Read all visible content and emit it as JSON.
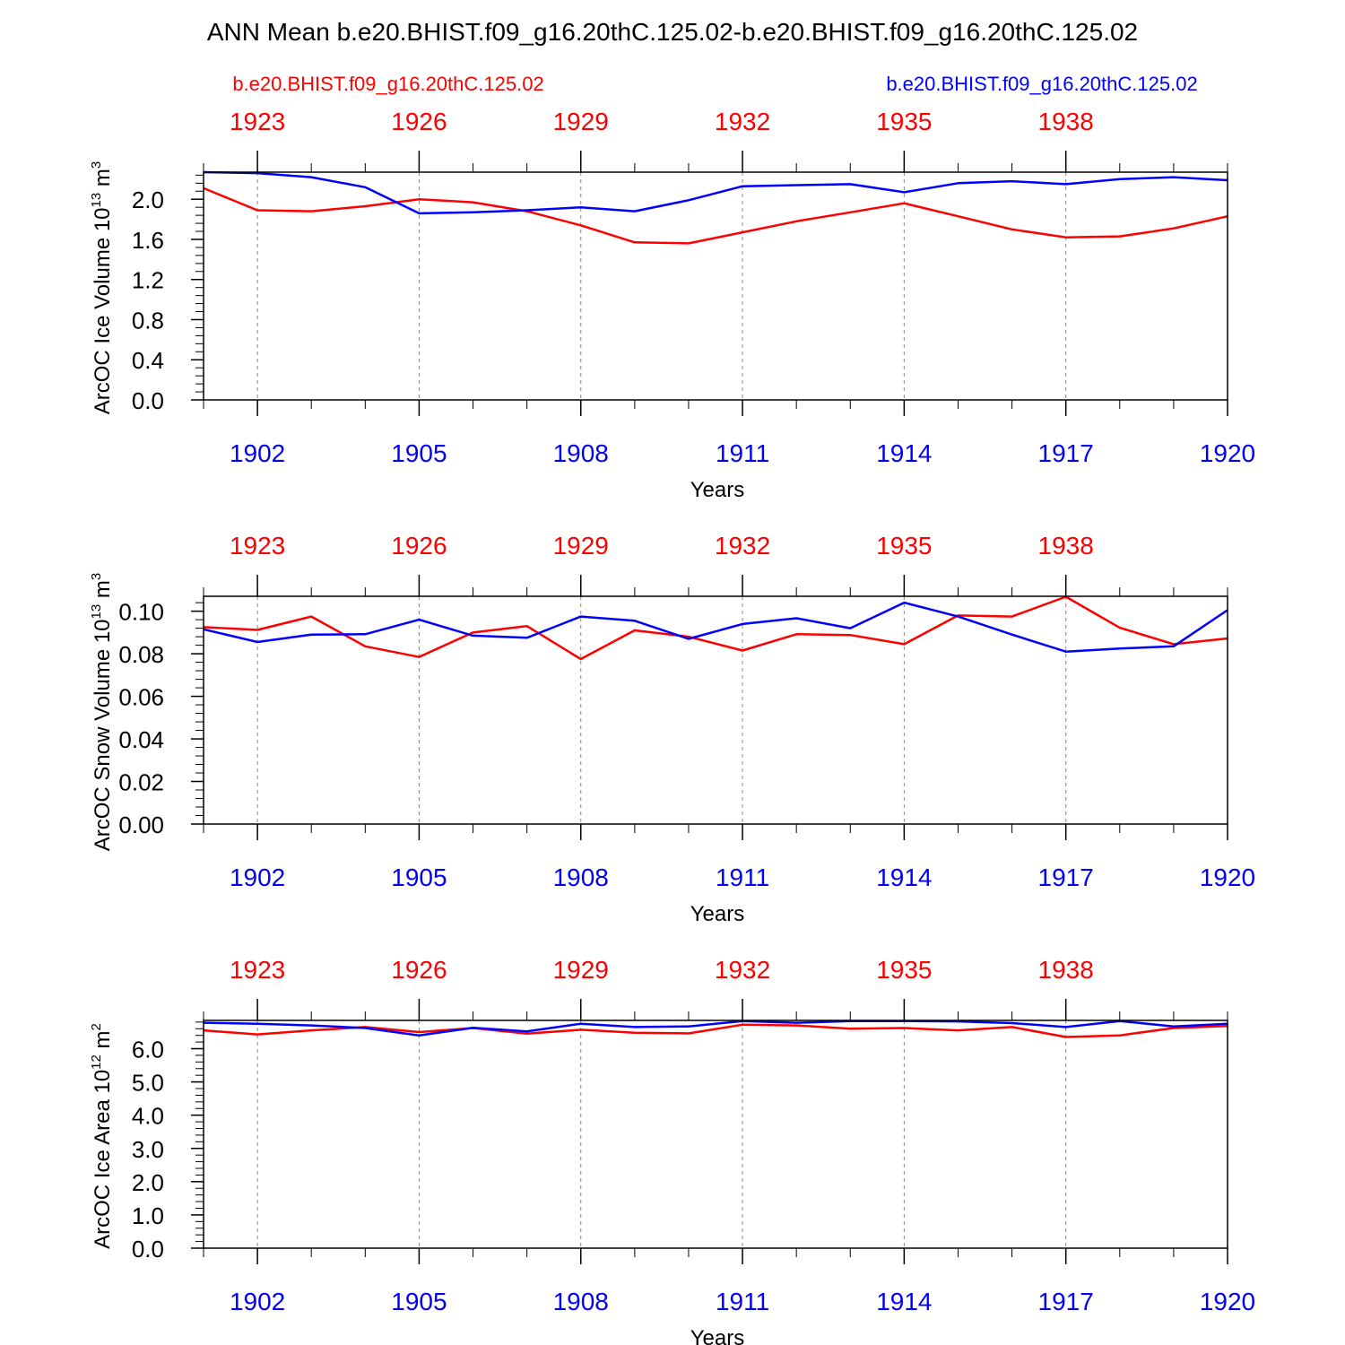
{
  "title": "ANN Mean b.e20.BHIST.f09_g16.20thC.125.02-b.e20.BHIST.f09_g16.20thC.125.02",
  "legend": {
    "left_label": "b.e20.BHIST.f09_g16.20thC.125.02",
    "right_label": "b.e20.BHIST.f09_g16.20thC.125.02",
    "left_color": "#ff0000",
    "right_color": "#0000ff"
  },
  "colors": {
    "red": "#ff0000",
    "blue": "#0000ff",
    "axis": "#000000",
    "grid": "#888888"
  },
  "chart_data": [
    {
      "type": "line",
      "ylabel": "ArcOC Ice Volume 10",
      "ylabel_exp": "13",
      "ylabel_unit": " m",
      "ylabel_unit_exp": "3",
      "xlabel": "Years",
      "ylim": [
        0,
        2.27
      ],
      "yticks": [
        0.0,
        0.4,
        0.8,
        1.2,
        1.6,
        2.0
      ],
      "ytick_labels": [
        "0.0",
        "0.4",
        "0.8",
        "1.2",
        "1.6",
        "2.0"
      ],
      "yminor_step": 0.08,
      "x_bottom_ticks": [
        1902,
        1905,
        1908,
        1911,
        1914,
        1917,
        1920
      ],
      "x_bottom_labels": [
        "1902",
        "1905",
        "1908",
        "1911",
        "1914",
        "1917",
        "1920"
      ],
      "x_top_ticks": [
        1923,
        1926,
        1929,
        1932,
        1935,
        1938
      ],
      "x_top_labels": [
        "1923",
        "1926",
        "1929",
        "1932",
        "1935",
        "1938"
      ],
      "x_bottom": [
        1901,
        1902,
        1903,
        1904,
        1905,
        1906,
        1907,
        1908,
        1909,
        1910,
        1911,
        1912,
        1913,
        1914,
        1915,
        1916,
        1917,
        1918,
        1919,
        1920
      ],
      "series": [
        {
          "name": "b.e20.BHIST.f09_g16.20thC.125.02 (red)",
          "color": "red",
          "values": [
            2.11,
            1.89,
            1.88,
            1.93,
            2.0,
            1.97,
            1.88,
            1.74,
            1.57,
            1.56,
            1.67,
            1.78,
            1.87,
            1.96,
            1.83,
            1.7,
            1.62,
            1.63,
            1.71,
            1.83
          ]
        },
        {
          "name": "b.e20.BHIST.f09_g16.20thC.125.02 (blue)",
          "color": "blue",
          "values": [
            2.27,
            2.26,
            2.22,
            2.12,
            1.86,
            1.87,
            1.89,
            1.92,
            1.88,
            1.99,
            2.13,
            2.14,
            2.15,
            2.07,
            2.16,
            2.18,
            2.15,
            2.2,
            2.22,
            2.19
          ]
        }
      ]
    },
    {
      "type": "line",
      "ylabel": "ArcOC Snow Volume 10",
      "ylabel_exp": "13",
      "ylabel_unit": " m",
      "ylabel_unit_exp": "3",
      "xlabel": "Years",
      "ylim": [
        0,
        0.107
      ],
      "yticks": [
        0.0,
        0.02,
        0.04,
        0.06,
        0.08,
        0.1
      ],
      "ytick_labels": [
        "0.00",
        "0.02",
        "0.04",
        "0.06",
        "0.08",
        "0.10"
      ],
      "yminor_step": 0.004,
      "x_bottom_ticks": [
        1902,
        1905,
        1908,
        1911,
        1914,
        1917,
        1920
      ],
      "x_bottom_labels": [
        "1902",
        "1905",
        "1908",
        "1911",
        "1914",
        "1917",
        "1920"
      ],
      "x_top_ticks": [
        1923,
        1926,
        1929,
        1932,
        1935,
        1938
      ],
      "x_top_labels": [
        "1923",
        "1926",
        "1929",
        "1932",
        "1935",
        "1938"
      ],
      "x_bottom": [
        1901,
        1902,
        1903,
        1904,
        1905,
        1906,
        1907,
        1908,
        1909,
        1910,
        1911,
        1912,
        1913,
        1914,
        1915,
        1916,
        1917,
        1918,
        1919,
        1920
      ],
      "series": [
        {
          "name": "b.e20.BHIST.f09_g16.20thC.125.02 (red)",
          "color": "red",
          "values": [
            0.0925,
            0.0912,
            0.0975,
            0.0835,
            0.0785,
            0.09,
            0.093,
            0.0775,
            0.091,
            0.088,
            0.0815,
            0.0892,
            0.0888,
            0.0845,
            0.098,
            0.0975,
            0.1068,
            0.0922,
            0.0845,
            0.0872
          ]
        },
        {
          "name": "b.e20.BHIST.f09_g16.20thC.125.02 (blue)",
          "color": "blue",
          "values": [
            0.0915,
            0.0855,
            0.089,
            0.0892,
            0.096,
            0.0885,
            0.0875,
            0.0975,
            0.0955,
            0.087,
            0.094,
            0.0967,
            0.092,
            0.104,
            0.0975,
            0.089,
            0.081,
            0.0825,
            0.0835,
            0.1005
          ]
        }
      ]
    },
    {
      "type": "line",
      "ylabel": "ArcOC Ice Area 10",
      "ylabel_exp": "12",
      "ylabel_unit": " m",
      "ylabel_unit_exp": "2",
      "xlabel": "Years",
      "ylim": [
        0,
        6.85
      ],
      "yticks": [
        0.0,
        1.0,
        2.0,
        3.0,
        4.0,
        5.0,
        6.0
      ],
      "ytick_labels": [
        "0.0",
        "1.0",
        "2.0",
        "3.0",
        "4.0",
        "5.0",
        "6.0"
      ],
      "yminor_step": 0.2,
      "x_bottom_ticks": [
        1902,
        1905,
        1908,
        1911,
        1914,
        1917,
        1920
      ],
      "x_bottom_labels": [
        "1902",
        "1905",
        "1908",
        "1911",
        "1914",
        "1917",
        "1920"
      ],
      "x_top_ticks": [
        1923,
        1926,
        1929,
        1932,
        1935,
        1938
      ],
      "x_top_labels": [
        "1923",
        "1926",
        "1929",
        "1932",
        "1935",
        "1938"
      ],
      "x_bottom": [
        1901,
        1902,
        1903,
        1904,
        1905,
        1906,
        1907,
        1908,
        1909,
        1910,
        1911,
        1912,
        1913,
        1914,
        1915,
        1916,
        1917,
        1918,
        1919,
        1920
      ],
      "series": [
        {
          "name": "b.e20.BHIST.f09_g16.20thC.125.02 (red)",
          "color": "red",
          "values": [
            6.55,
            6.43,
            6.55,
            6.65,
            6.5,
            6.62,
            6.45,
            6.57,
            6.48,
            6.46,
            6.72,
            6.7,
            6.6,
            6.62,
            6.55,
            6.65,
            6.35,
            6.4,
            6.62,
            6.68
          ]
        },
        {
          "name": "b.e20.BHIST.f09_g16.20thC.125.02 (blue)",
          "color": "blue",
          "values": [
            6.78,
            6.75,
            6.7,
            6.62,
            6.4,
            6.63,
            6.52,
            6.75,
            6.65,
            6.67,
            6.83,
            6.78,
            6.83,
            6.83,
            6.82,
            6.77,
            6.65,
            6.83,
            6.67,
            6.75
          ]
        }
      ]
    }
  ]
}
